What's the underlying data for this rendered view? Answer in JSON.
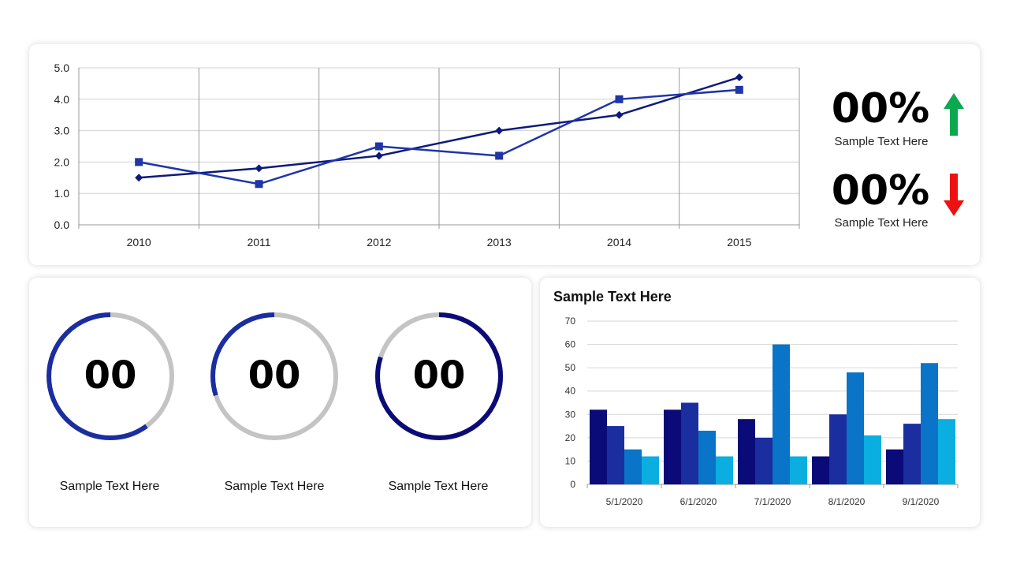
{
  "line_chart": {
    "type": "line",
    "x": [
      "2010",
      "2011",
      "2012",
      "2013",
      "2014",
      "2015"
    ],
    "ylim": [
      0,
      5
    ],
    "yticks": [
      "0.0",
      "1.0",
      "2.0",
      "3.0",
      "4.0",
      "5.0"
    ],
    "series": [
      {
        "values": [
          1.5,
          1.8,
          2.2,
          3.0,
          3.5,
          4.7
        ],
        "marker": "diamond",
        "color": "#0d1a7a"
      },
      {
        "values": [
          2.0,
          1.3,
          2.5,
          2.2,
          4.0,
          4.3
        ],
        "marker": "square",
        "color": "#1f35a8"
      }
    ],
    "grid": true
  },
  "kpis": [
    {
      "value": "00%",
      "label": "Sample Text Here",
      "trend": "up",
      "arrow_color": "#0aa84f",
      "icon": "arrow-up-icon"
    },
    {
      "value": "00%",
      "label": "Sample Text Here",
      "trend": "down",
      "arrow_color": "#ee1111",
      "icon": "arrow-down-icon"
    }
  ],
  "rings": [
    {
      "value": "00",
      "label": "Sample Text Here",
      "progress": 0.6,
      "color": "#1a2ea0",
      "start": "top",
      "direction": "counterclockwise"
    },
    {
      "value": "00",
      "label": "Sample Text Here",
      "progress": 0.3,
      "color": "#1a2ea0",
      "start": "top",
      "direction": "counterclockwise"
    },
    {
      "value": "00",
      "label": "Sample Text Here",
      "progress": 0.8,
      "color": "#0b0b78",
      "start": "top",
      "direction": "clockwise"
    }
  ],
  "bar_chart": {
    "type": "bar",
    "title": "Sample Text Here",
    "categories": [
      "5/1/2020",
      "6/1/2020",
      "7/1/2020",
      "8/1/2020",
      "9/1/2020"
    ],
    "ylim": [
      0,
      70
    ],
    "yticks": [
      "0",
      "10",
      "20",
      "30",
      "40",
      "50",
      "60",
      "70"
    ],
    "series": [
      {
        "values": [
          32,
          32,
          28,
          12,
          15
        ],
        "color": "#0a0a78"
      },
      {
        "values": [
          25,
          35,
          20,
          30,
          26
        ],
        "color": "#1a2ea0"
      },
      {
        "values": [
          15,
          23,
          60,
          48,
          52
        ],
        "color": "#0a74c8"
      },
      {
        "values": [
          12,
          12,
          12,
          21,
          28
        ],
        "color": "#0aaee0"
      }
    ],
    "grid": true
  },
  "chart_data": [
    {
      "type": "line",
      "x": [
        "2010",
        "2011",
        "2012",
        "2013",
        "2014",
        "2015"
      ],
      "series": [
        {
          "values": [
            1.5,
            1.8,
            2.2,
            3.0,
            3.5,
            4.7
          ]
        },
        {
          "values": [
            2.0,
            1.3,
            2.5,
            2.2,
            4.0,
            4.3
          ]
        }
      ],
      "ylim": [
        0,
        5
      ],
      "title": "",
      "xlabel": "",
      "ylabel": ""
    },
    {
      "type": "bar",
      "categories": [
        "5/1/2020",
        "6/1/2020",
        "7/1/2020",
        "8/1/2020",
        "9/1/2020"
      ],
      "series": [
        {
          "values": [
            32,
            32,
            28,
            12,
            15
          ]
        },
        {
          "values": [
            25,
            35,
            20,
            30,
            26
          ]
        },
        {
          "values": [
            15,
            23,
            60,
            48,
            52
          ]
        },
        {
          "values": [
            12,
            12,
            12,
            21,
            28
          ]
        }
      ],
      "ylim": [
        0,
        70
      ],
      "title": "Sample Text Here",
      "xlabel": "",
      "ylabel": ""
    }
  ]
}
